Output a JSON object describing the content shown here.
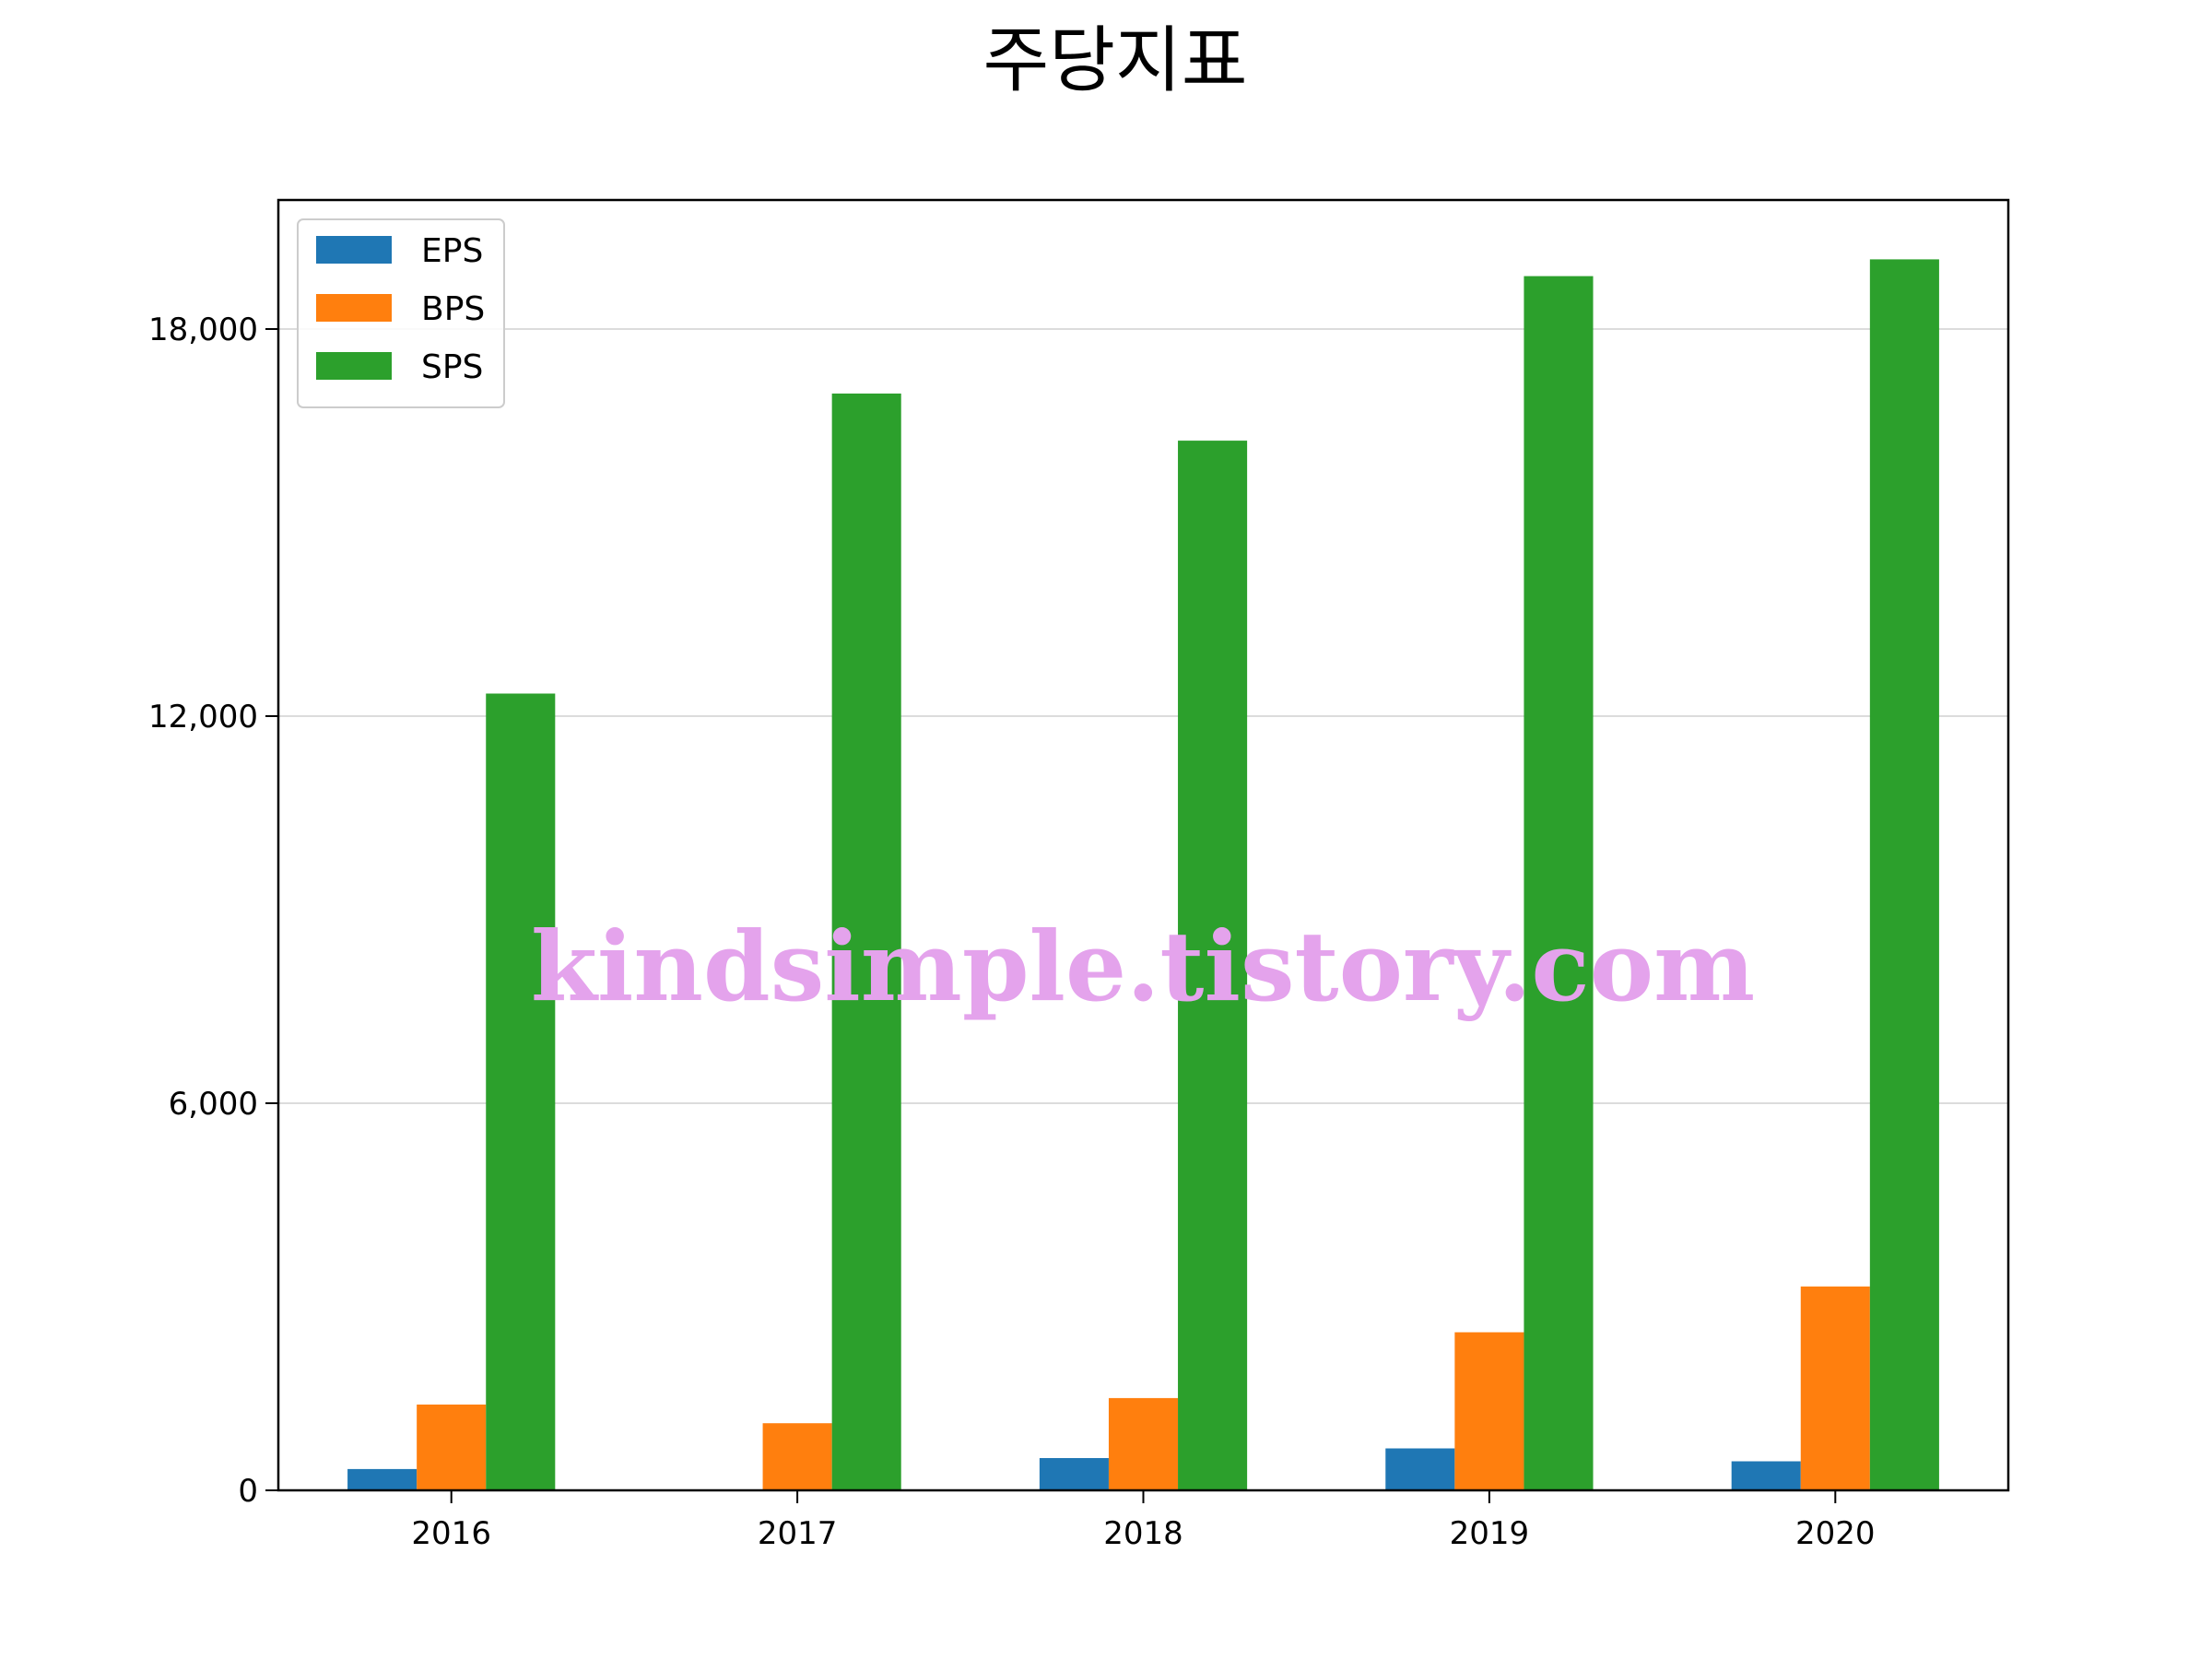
{
  "chart_data": {
    "type": "bar",
    "title": "주당지표",
    "categories": [
      "2016",
      "2017",
      "2018",
      "2019",
      "2020"
    ],
    "series": [
      {
        "name": "EPS",
        "color": "#1f77b4",
        "values": [
          330,
          0,
          500,
          650,
          450
        ]
      },
      {
        "name": "BPS",
        "color": "#ff7f0e",
        "values": [
          1330,
          1040,
          1430,
          2450,
          3160
        ]
      },
      {
        "name": "SPS",
        "color": "#2ca02c",
        "values": [
          12350,
          17000,
          16270,
          18820,
          19080
        ]
      }
    ],
    "yticks": [
      0,
      6000,
      12000,
      18000
    ],
    "ytick_labels": [
      "0",
      "6,000",
      "12,000",
      "18,000"
    ],
    "ylim": [
      0,
      20000
    ],
    "xlabel": "",
    "ylabel": "",
    "grid": "horizontal",
    "legend_position": "top-left"
  },
  "watermark": "kindsimple.tistory.com"
}
